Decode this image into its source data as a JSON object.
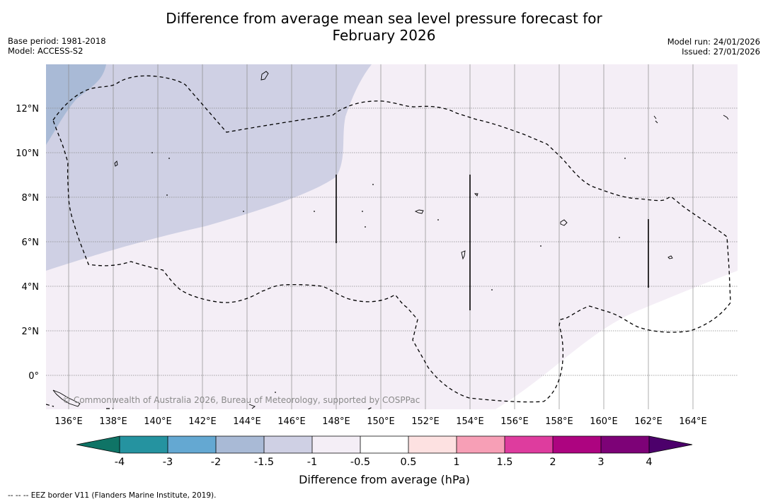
{
  "title": {
    "line1": "Difference from average mean sea level pressure forecast for",
    "line2": "February 2026"
  },
  "meta_left": {
    "base_period": "Base period: 1981-2018",
    "model": "Model: ACCESS-S2"
  },
  "meta_right": {
    "model_run": "Model run: 24/01/2026",
    "issued": "Issued: 27/01/2026"
  },
  "map": {
    "longitude_labels": [
      "136°E",
      "138°E",
      "140°E",
      "142°E",
      "144°E",
      "146°E",
      "148°E",
      "150°E",
      "152°E",
      "154°E",
      "156°E",
      "158°E",
      "160°E",
      "162°E",
      "164°E"
    ],
    "latitude_labels": [
      "12°N",
      "10°N",
      "8°N",
      "6°N",
      "4°N",
      "2°N",
      "0°"
    ],
    "copyright": "© Commonwealth of Australia 2026, Bureau of Meteorology, supported by COSPPac",
    "fill_colors": {
      "minus_2_to_minus_1_5": "#a9bad6",
      "minus_1_5_to_minus_1": "#cfd0e4",
      "minus_1_to_minus_0_5": "#f4eef6",
      "minus_0_5_to_0_5": "#ffffff"
    }
  },
  "colorbar": {
    "title": "Difference from average (hPa)",
    "tick_labels": [
      "-4",
      "-3",
      "-2",
      "-1.5",
      "-1",
      "-0.5",
      "0.5",
      "1",
      "1.5",
      "2",
      "3",
      "4"
    ],
    "colors": [
      "#0f7466",
      "#2593a0",
      "#64a8d2",
      "#a9bad6",
      "#cfd0e4",
      "#f4eef6",
      "#ffffff",
      "#fde1e1",
      "#f79fb6",
      "#de3c9e",
      "#ad0480",
      "#7d0277",
      "#4c006b"
    ]
  },
  "footer": "--  --  -- EEZ border V11 (Flanders Marine Institute, 2019)."
}
